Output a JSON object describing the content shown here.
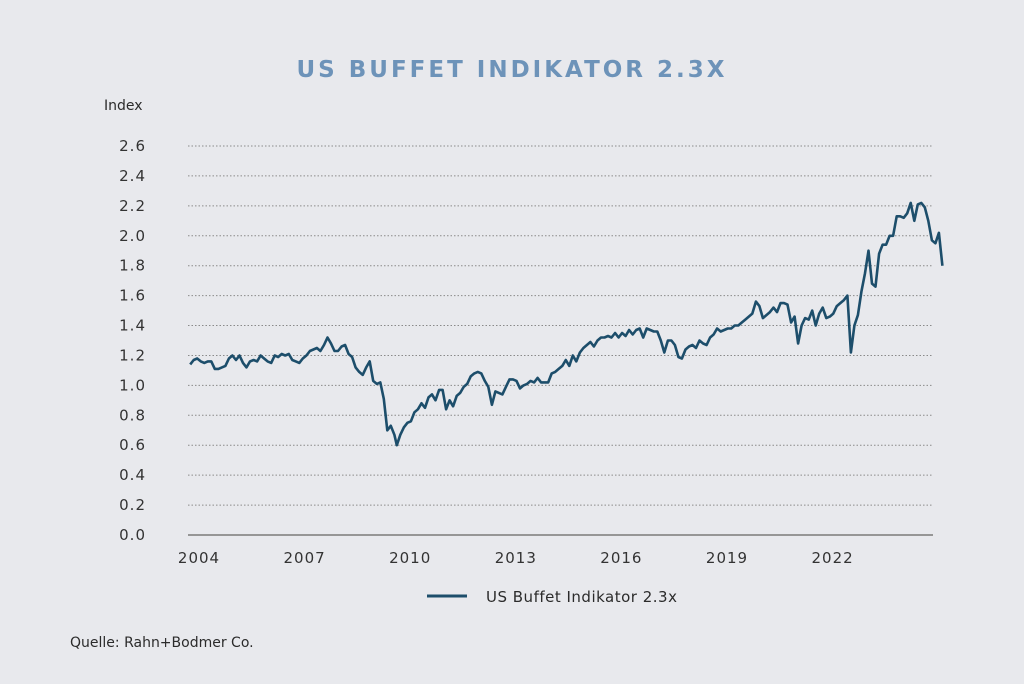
{
  "chart_data": {
    "type": "line",
    "title": "US BUFFET INDIKATOR 2.3X",
    "xlabel": "",
    "ylabel": "Index",
    "ylim": [
      0.0,
      2.6
    ],
    "xlim": [
      2003.75,
      2025.0
    ],
    "grid": true,
    "legend_position": "bottom-center",
    "yticks": [
      "0.0",
      "0.2",
      "0.4",
      "0.6",
      "0.8",
      "1.0",
      "1.2",
      "1.4",
      "1.6",
      "1.8",
      "2.0",
      "2.2",
      "2.4",
      "2.6"
    ],
    "xticks": [
      {
        "label": "2004",
        "x": 2004
      },
      {
        "label": "2007",
        "x": 2007
      },
      {
        "label": "2010",
        "x": 2010
      },
      {
        "label": "2013",
        "x": 2013
      },
      {
        "label": "2016",
        "x": 2016
      },
      {
        "label": "2019",
        "x": 2019
      },
      {
        "label": "2022",
        "x": 2022
      }
    ],
    "series": [
      {
        "name": "US Buffet Indikator 2.3x",
        "color": "#1d4e6b",
        "points": [
          [
            2003.75,
            1.14
          ],
          [
            2003.85,
            1.17
          ],
          [
            2003.95,
            1.18
          ],
          [
            2004.05,
            1.16
          ],
          [
            2004.15,
            1.15
          ],
          [
            2004.25,
            1.16
          ],
          [
            2004.35,
            1.16
          ],
          [
            2004.45,
            1.11
          ],
          [
            2004.55,
            1.11
          ],
          [
            2004.65,
            1.12
          ],
          [
            2004.75,
            1.13
          ],
          [
            2004.85,
            1.18
          ],
          [
            2004.95,
            1.2
          ],
          [
            2005.05,
            1.17
          ],
          [
            2005.15,
            1.2
          ],
          [
            2005.25,
            1.15
          ],
          [
            2005.35,
            1.12
          ],
          [
            2005.45,
            1.16
          ],
          [
            2005.55,
            1.17
          ],
          [
            2005.65,
            1.16
          ],
          [
            2005.75,
            1.2
          ],
          [
            2005.85,
            1.18
          ],
          [
            2005.95,
            1.16
          ],
          [
            2006.05,
            1.15
          ],
          [
            2006.15,
            1.2
          ],
          [
            2006.25,
            1.19
          ],
          [
            2006.35,
            1.21
          ],
          [
            2006.45,
            1.2
          ],
          [
            2006.55,
            1.21
          ],
          [
            2006.65,
            1.17
          ],
          [
            2006.75,
            1.16
          ],
          [
            2006.85,
            1.15
          ],
          [
            2006.95,
            1.18
          ],
          [
            2007.05,
            1.2
          ],
          [
            2007.15,
            1.23
          ],
          [
            2007.25,
            1.24
          ],
          [
            2007.35,
            1.25
          ],
          [
            2007.45,
            1.23
          ],
          [
            2007.55,
            1.27
          ],
          [
            2007.65,
            1.32
          ],
          [
            2007.75,
            1.28
          ],
          [
            2007.85,
            1.23
          ],
          [
            2007.95,
            1.23
          ],
          [
            2008.05,
            1.26
          ],
          [
            2008.15,
            1.27
          ],
          [
            2008.25,
            1.21
          ],
          [
            2008.35,
            1.19
          ],
          [
            2008.45,
            1.12
          ],
          [
            2008.55,
            1.09
          ],
          [
            2008.65,
            1.07
          ],
          [
            2008.75,
            1.12
          ],
          [
            2008.85,
            1.16
          ],
          [
            2008.95,
            1.03
          ],
          [
            2009.05,
            1.01
          ],
          [
            2009.15,
            1.02
          ],
          [
            2009.25,
            0.91
          ],
          [
            2009.35,
            0.7
          ],
          [
            2009.45,
            0.73
          ],
          [
            2009.55,
            0.67
          ],
          [
            2009.62,
            0.6
          ],
          [
            2009.72,
            0.67
          ],
          [
            2009.82,
            0.72
          ],
          [
            2009.92,
            0.75
          ],
          [
            2010.02,
            0.76
          ],
          [
            2010.12,
            0.82
          ],
          [
            2010.22,
            0.84
          ],
          [
            2010.32,
            0.88
          ],
          [
            2010.42,
            0.85
          ],
          [
            2010.52,
            0.92
          ],
          [
            2010.62,
            0.94
          ],
          [
            2010.72,
            0.9
          ],
          [
            2010.82,
            0.97
          ],
          [
            2010.92,
            0.97
          ],
          [
            2011.02,
            0.84
          ],
          [
            2011.12,
            0.9
          ],
          [
            2011.22,
            0.86
          ],
          [
            2011.32,
            0.93
          ],
          [
            2011.42,
            0.95
          ],
          [
            2011.52,
            0.99
          ],
          [
            2011.62,
            1.01
          ],
          [
            2011.72,
            1.06
          ],
          [
            2011.82,
            1.08
          ],
          [
            2011.92,
            1.09
          ],
          [
            2012.02,
            1.08
          ],
          [
            2012.12,
            1.03
          ],
          [
            2012.22,
            0.99
          ],
          [
            2012.32,
            0.87
          ],
          [
            2012.42,
            0.96
          ],
          [
            2012.52,
            0.95
          ],
          [
            2012.62,
            0.94
          ],
          [
            2012.72,
            0.99
          ],
          [
            2012.82,
            1.04
          ],
          [
            2012.92,
            1.04
          ],
          [
            2013.02,
            1.03
          ],
          [
            2013.12,
            0.98
          ],
          [
            2013.22,
            1.0
          ],
          [
            2013.32,
            1.01
          ],
          [
            2013.42,
            1.03
          ],
          [
            2013.52,
            1.02
          ],
          [
            2013.62,
            1.05
          ],
          [
            2013.72,
            1.02
          ],
          [
            2013.82,
            1.02
          ],
          [
            2013.92,
            1.02
          ],
          [
            2014.02,
            1.08
          ],
          [
            2014.12,
            1.09
          ],
          [
            2014.22,
            1.11
          ],
          [
            2014.32,
            1.13
          ],
          [
            2014.42,
            1.17
          ],
          [
            2014.52,
            1.13
          ],
          [
            2014.62,
            1.2
          ],
          [
            2014.72,
            1.16
          ],
          [
            2014.82,
            1.22
          ],
          [
            2014.92,
            1.25
          ],
          [
            2015.02,
            1.27
          ],
          [
            2015.12,
            1.29
          ],
          [
            2015.22,
            1.26
          ],
          [
            2015.32,
            1.3
          ],
          [
            2015.42,
            1.32
          ],
          [
            2015.52,
            1.32
          ],
          [
            2015.62,
            1.33
          ],
          [
            2015.72,
            1.32
          ],
          [
            2015.82,
            1.35
          ],
          [
            2015.92,
            1.32
          ],
          [
            2016.02,
            1.35
          ],
          [
            2016.12,
            1.33
          ],
          [
            2016.22,
            1.37
          ],
          [
            2016.32,
            1.34
          ],
          [
            2016.42,
            1.37
          ],
          [
            2016.52,
            1.38
          ],
          [
            2016.62,
            1.32
          ],
          [
            2016.72,
            1.38
          ],
          [
            2016.82,
            1.37
          ],
          [
            2016.92,
            1.36
          ],
          [
            2017.02,
            1.36
          ],
          [
            2017.12,
            1.3
          ],
          [
            2017.22,
            1.22
          ],
          [
            2017.32,
            1.3
          ],
          [
            2017.42,
            1.3
          ],
          [
            2017.52,
            1.27
          ],
          [
            2017.62,
            1.19
          ],
          [
            2017.72,
            1.18
          ],
          [
            2017.82,
            1.24
          ],
          [
            2017.92,
            1.26
          ],
          [
            2018.02,
            1.27
          ],
          [
            2018.12,
            1.25
          ],
          [
            2018.22,
            1.3
          ],
          [
            2018.32,
            1.28
          ],
          [
            2018.42,
            1.27
          ],
          [
            2018.52,
            1.32
          ],
          [
            2018.62,
            1.34
          ],
          [
            2018.72,
            1.38
          ],
          [
            2018.82,
            1.36
          ],
          [
            2018.92,
            1.37
          ],
          [
            2019.02,
            1.38
          ],
          [
            2019.12,
            1.38
          ],
          [
            2019.22,
            1.4
          ],
          [
            2019.32,
            1.4
          ],
          [
            2019.42,
            1.42
          ],
          [
            2019.52,
            1.44
          ],
          [
            2019.62,
            1.46
          ],
          [
            2019.72,
            1.48
          ],
          [
            2019.82,
            1.56
          ],
          [
            2019.92,
            1.53
          ],
          [
            2020.02,
            1.45
          ],
          [
            2020.12,
            1.47
          ],
          [
            2020.22,
            1.49
          ],
          [
            2020.32,
            1.52
          ],
          [
            2020.42,
            1.49
          ],
          [
            2020.52,
            1.55
          ],
          [
            2020.62,
            1.55
          ],
          [
            2020.72,
            1.54
          ],
          [
            2020.82,
            1.42
          ],
          [
            2020.92,
            1.46
          ],
          [
            2021.02,
            1.28
          ],
          [
            2021.12,
            1.4
          ],
          [
            2021.22,
            1.45
          ],
          [
            2021.32,
            1.44
          ],
          [
            2021.42,
            1.5
          ],
          [
            2021.52,
            1.4
          ],
          [
            2021.62,
            1.48
          ],
          [
            2021.72,
            1.52
          ],
          [
            2021.82,
            1.45
          ],
          [
            2021.92,
            1.46
          ],
          [
            2022.02,
            1.48
          ],
          [
            2022.12,
            1.53
          ],
          [
            2022.22,
            1.55
          ],
          [
            2022.32,
            1.57
          ],
          [
            2022.42,
            1.6
          ],
          [
            2022.52,
            1.22
          ],
          [
            2022.62,
            1.4
          ],
          [
            2022.72,
            1.47
          ],
          [
            2022.82,
            1.63
          ],
          [
            2022.92,
            1.75
          ],
          [
            2023.02,
            1.9
          ],
          [
            2023.12,
            1.68
          ],
          [
            2023.22,
            1.66
          ],
          [
            2023.32,
            1.88
          ],
          [
            2023.42,
            1.94
          ],
          [
            2023.52,
            1.94
          ],
          [
            2023.62,
            2.0
          ],
          [
            2023.72,
            2.0
          ],
          [
            2023.82,
            2.13
          ],
          [
            2023.92,
            2.13
          ],
          [
            2024.02,
            2.12
          ],
          [
            2024.12,
            2.15
          ],
          [
            2024.22,
            2.22
          ],
          [
            2024.32,
            2.1
          ],
          [
            2024.42,
            2.21
          ],
          [
            2024.52,
            2.22
          ],
          [
            2024.62,
            2.19
          ],
          [
            2024.72,
            2.1
          ],
          [
            2024.82,
            1.97
          ],
          [
            2024.92,
            1.95
          ],
          [
            2025.02,
            2.02
          ],
          [
            2025.12,
            1.8
          ]
        ]
      }
    ]
  },
  "legend": {
    "label": "US Buffet Indikator 2.3x"
  },
  "header": {
    "title": "US BUFFET INDIKATOR 2.3X",
    "y_axis_unit": "Index"
  },
  "footer": {
    "source": "Quelle: Rahn+Bodmer Co."
  }
}
